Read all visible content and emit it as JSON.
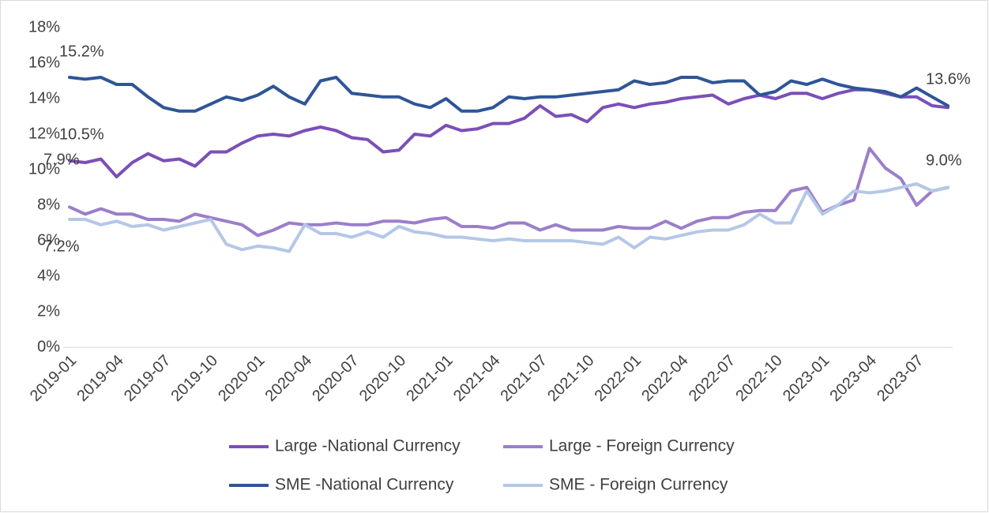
{
  "chart_data": {
    "type": "line",
    "categories": [
      "2019-01",
      null,
      null,
      "2019-04",
      null,
      null,
      "2019-07",
      null,
      null,
      "2019-10",
      null,
      null,
      "2020-01",
      null,
      null,
      "2020-04",
      null,
      null,
      "2020-07",
      null,
      null,
      "2020-10",
      null,
      null,
      "2021-01",
      null,
      null,
      "2021-04",
      null,
      null,
      "2021-07",
      null,
      null,
      "2021-10",
      null,
      null,
      "2022-01",
      null,
      null,
      "2022-04",
      null,
      null,
      "2022-07",
      null,
      null,
      "2022-10",
      null,
      null,
      "2023-01",
      null,
      null,
      "2023-04",
      null,
      null,
      "2023-07",
      null,
      null
    ],
    "series": [
      {
        "name": "Large -National Currency",
        "color": "#7b4fb8",
        "values": [
          10.5,
          10.4,
          10.6,
          9.6,
          10.4,
          10.9,
          10.5,
          10.6,
          10.2,
          11.0,
          11.0,
          11.5,
          11.9,
          12.0,
          11.9,
          12.2,
          12.4,
          12.2,
          11.8,
          11.7,
          11.0,
          11.1,
          12.0,
          11.9,
          12.5,
          12.2,
          12.3,
          12.6,
          12.6,
          12.9,
          13.6,
          13.0,
          13.1,
          12.7,
          13.5,
          13.7,
          13.5,
          13.7,
          13.8,
          14.0,
          14.1,
          14.2,
          13.7,
          14.0,
          14.2,
          14.0,
          14.3,
          14.3,
          14.0,
          14.3,
          14.5,
          14.5,
          14.3,
          14.1,
          14.1,
          13.6,
          13.5
        ]
      },
      {
        "name": "Large - Foreign Currency",
        "color": "#9b7fc9",
        "values": [
          7.9,
          7.5,
          7.8,
          7.5,
          7.5,
          7.2,
          7.2,
          7.1,
          7.5,
          7.3,
          7.1,
          6.9,
          6.3,
          6.6,
          7.0,
          6.9,
          6.9,
          7.0,
          6.9,
          6.9,
          7.1,
          7.1,
          7.0,
          7.2,
          7.3,
          6.8,
          6.8,
          6.7,
          7.0,
          7.0,
          6.6,
          6.9,
          6.6,
          6.6,
          6.6,
          6.8,
          6.7,
          6.7,
          7.1,
          6.7,
          7.1,
          7.3,
          7.3,
          7.6,
          7.7,
          7.7,
          8.8,
          9.0,
          7.6,
          8.0,
          8.3,
          11.2,
          10.1,
          9.5,
          8.0,
          8.8,
          9.0
        ]
      },
      {
        "name": "SME -National Currency",
        "color": "#2f5597",
        "values": [
          15.2,
          15.1,
          15.2,
          14.8,
          14.8,
          14.1,
          13.5,
          13.3,
          13.3,
          13.7,
          14.1,
          13.9,
          14.2,
          14.7,
          14.1,
          13.7,
          15.0,
          15.2,
          14.3,
          14.2,
          14.1,
          14.1,
          13.7,
          13.5,
          14.0,
          13.3,
          13.3,
          13.5,
          14.1,
          14.0,
          14.1,
          14.1,
          14.2,
          14.3,
          14.4,
          14.5,
          15.0,
          14.8,
          14.9,
          15.2,
          15.2,
          14.9,
          15.0,
          15.0,
          14.2,
          14.4,
          15.0,
          14.8,
          15.1,
          14.8,
          14.6,
          14.5,
          14.4,
          14.1,
          14.6,
          14.1,
          13.6
        ]
      },
      {
        "name": "SME - Foreign Currency",
        "color": "#b4c7e7",
        "values": [
          7.2,
          7.2,
          6.9,
          7.1,
          6.8,
          6.9,
          6.6,
          6.8,
          7.0,
          7.2,
          5.8,
          5.5,
          5.7,
          5.6,
          5.4,
          6.9,
          6.4,
          6.4,
          6.2,
          6.5,
          6.2,
          6.8,
          6.5,
          6.4,
          6.2,
          6.2,
          6.1,
          6.0,
          6.1,
          6.0,
          6.0,
          6.0,
          6.0,
          5.9,
          5.8,
          6.2,
          5.6,
          6.2,
          6.1,
          6.3,
          6.5,
          6.6,
          6.6,
          6.9,
          7.5,
          7.0,
          7.0,
          8.8,
          7.5,
          8.0,
          8.8,
          8.7,
          8.8,
          9.0,
          9.2,
          8.8,
          9.0
        ]
      }
    ],
    "annotations": [
      "15.2%",
      "10.5%",
      "7.9%",
      "7.2%",
      "13.6%",
      "9.0%"
    ],
    "ylim": [
      0,
      18
    ],
    "yticks": [
      {
        "value": 0,
        "label": "0%"
      },
      {
        "value": 2,
        "label": "2%"
      },
      {
        "value": 4,
        "label": "4%"
      },
      {
        "value": 6,
        "label": "6%"
      },
      {
        "value": 8,
        "label": "8%"
      },
      {
        "value": 10,
        "label": "10%"
      },
      {
        "value": 12,
        "label": "12%"
      },
      {
        "value": 14,
        "label": "14%"
      },
      {
        "value": 16,
        "label": "16%"
      },
      {
        "value": 18,
        "label": "18%"
      }
    ],
    "grid": false,
    "legend": "bottom"
  }
}
